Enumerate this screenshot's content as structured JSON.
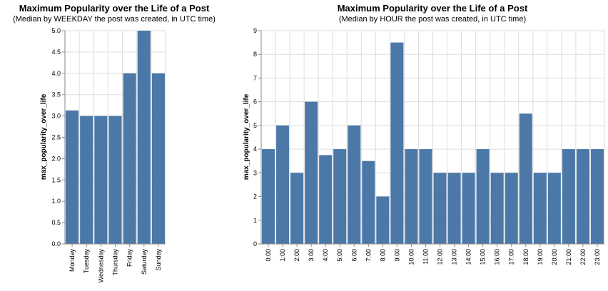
{
  "colors": {
    "bar": "#4c78a8"
  },
  "chart_data": [
    {
      "type": "bar",
      "title": "Maximum Popularity over the Life of a Post",
      "subtitle": "(Median by WEEKDAY the post was created, in UTC time)",
      "xlabel": "",
      "ylabel": "max_popularity_over_life",
      "categories": [
        "Monday",
        "Tuesday",
        "Wednesday",
        "Thursday",
        "Friday",
        "Saturday",
        "Sunday"
      ],
      "values": [
        3.13,
        3.0,
        3.0,
        3.0,
        4.0,
        5.0,
        4.0
      ],
      "ylim": [
        0,
        5
      ],
      "yticks": [
        "0.0",
        "0.5",
        "1.0",
        "1.5",
        "2.0",
        "2.5",
        "3.0",
        "3.5",
        "4.0",
        "4.5",
        "5.0"
      ],
      "grid": true
    },
    {
      "type": "bar",
      "title": "Maximum Popularity over the Life of a Post",
      "subtitle": "(Median by HOUR the post was created, in UTC time)",
      "xlabel": "",
      "ylabel": "max_popularity_over_life",
      "categories": [
        "0:00",
        "1:00",
        "2:00",
        "3:00",
        "4:00",
        "5:00",
        "6:00",
        "7:00",
        "8:00",
        "9:00",
        "10:00",
        "11:00",
        "12:00",
        "13:00",
        "14:00",
        "15:00",
        "16:00",
        "17:00",
        "18:00",
        "19:00",
        "20:00",
        "21:00",
        "22:00",
        "23:00"
      ],
      "values": [
        4,
        5,
        3,
        6,
        3.75,
        4,
        5,
        3.5,
        2,
        8.5,
        4,
        4,
        3,
        3,
        3,
        4,
        3,
        3,
        5.5,
        3,
        3,
        4,
        4,
        4
      ],
      "ylim": [
        0,
        9
      ],
      "yticks": [
        "0",
        "1",
        "2",
        "3",
        "4",
        "5",
        "6",
        "7",
        "8",
        "9"
      ],
      "grid": true
    }
  ]
}
